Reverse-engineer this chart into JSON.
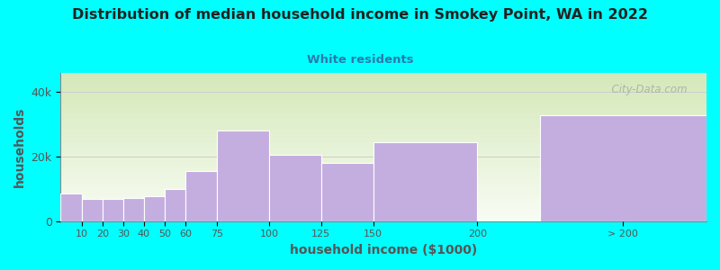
{
  "title": "Distribution of median household income in Smokey Point, WA in 2022",
  "subtitle": "White residents",
  "xlabel": "household income ($1000)",
  "ylabel": "households",
  "background_color": "#00FFFF",
  "bar_color": "#c4aee0",
  "bar_edge_color": "#ffffff",
  "title_color": "#222222",
  "subtitle_color": "#2a7aad",
  "axis_label_color": "#555555",
  "tick_color": "#555555",
  "categories": [
    "10",
    "20",
    "30",
    "40",
    "50",
    "60",
    "75",
    "100",
    "125",
    "150",
    "200",
    "> 200"
  ],
  "bar_lefts": [
    0,
    10,
    20,
    30,
    40,
    50,
    60,
    75,
    100,
    125,
    150,
    230
  ],
  "bar_widths": [
    10,
    10,
    10,
    10,
    10,
    10,
    15,
    25,
    25,
    25,
    50,
    80
  ],
  "bar_heights": [
    8500,
    7000,
    7000,
    7200,
    7800,
    10000,
    15500,
    28000,
    20500,
    18000,
    24500,
    33000
  ],
  "tick_positions": [
    10,
    20,
    30,
    40,
    50,
    60,
    75,
    100,
    125,
    150,
    200,
    270
  ],
  "tick_labels": [
    "10",
    "20",
    "30",
    "40",
    "50",
    "60",
    "75",
    "100",
    "125",
    "150",
    "200",
    "> 200"
  ],
  "ylim": [
    0,
    46000
  ],
  "yticks": [
    0,
    20000,
    40000
  ],
  "ytick_labels": [
    "0",
    "20k",
    "40k"
  ],
  "xlim": [
    0,
    310
  ],
  "gradient_top": "#d4e8b8",
  "gradient_bottom": "#f8fcf4",
  "watermark": "  City-Data.com"
}
